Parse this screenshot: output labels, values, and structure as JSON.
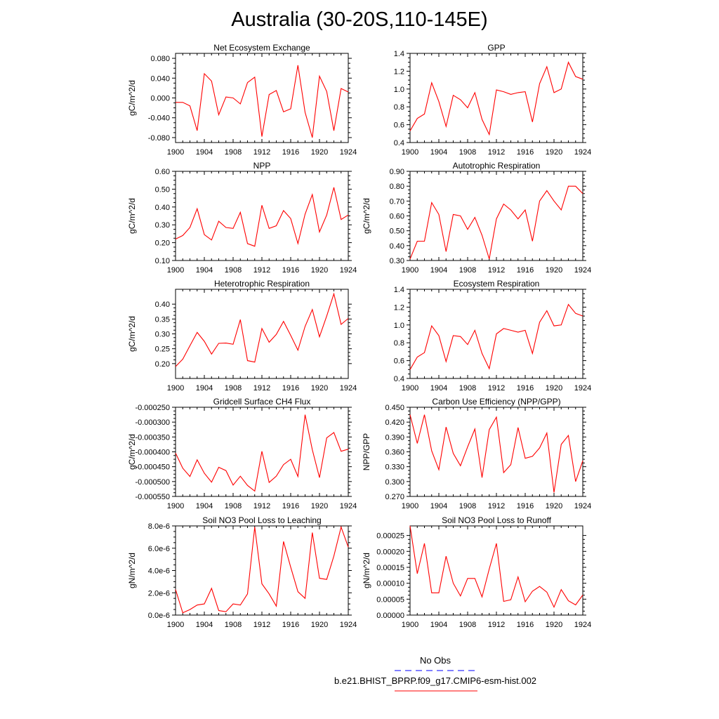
{
  "title": "Australia (30-20S,110-145E)",
  "colors": {
    "model": "#ff0000",
    "obs": "#0000ff",
    "axis": "#000000"
  },
  "legend": {
    "obs_label": "No Obs",
    "model_label": "b.e21.BHIST_BPRP.f09_g17.CMIP6-esm-hist.002"
  },
  "chart_data": [
    {
      "type": "line",
      "title": "Net Ecosystem Exchange",
      "ylabel": "gC/m^2/d",
      "xlim": [
        1900,
        1924
      ],
      "ylim": [
        -0.09,
        0.09
      ],
      "x_ticks": [
        "1900",
        "1904",
        "1908",
        "1912",
        "1916",
        "1920",
        "1924"
      ],
      "y_ticks": [
        -0.08,
        -0.04,
        0.0,
        0.04,
        0.08
      ],
      "y_tick_labels": [
        "-0.080",
        "-0.040",
        "0.000",
        "0.040",
        "0.080"
      ],
      "series": [
        {
          "x": [
            1900,
            1901,
            1902,
            1903,
            1904,
            1905,
            1906,
            1907,
            1908,
            1909,
            1910,
            1911,
            1912,
            1913,
            1914,
            1915,
            1916,
            1917,
            1918,
            1919,
            1920,
            1921,
            1922,
            1923,
            1924
          ],
          "y": [
            -0.009,
            -0.009,
            -0.016,
            -0.066,
            0.049,
            0.034,
            -0.034,
            0.002,
            0.0,
            -0.012,
            0.031,
            0.042,
            -0.078,
            0.007,
            0.015,
            -0.028,
            -0.022,
            0.066,
            -0.029,
            -0.08,
            0.044,
            0.013,
            -0.066,
            0.019,
            0.012
          ]
        }
      ]
    },
    {
      "type": "line",
      "title": "GPP",
      "ylabel": "",
      "xlim": [
        1900,
        1924
      ],
      "ylim": [
        0.4,
        1.4
      ],
      "x_ticks": [
        "1900",
        "1904",
        "1908",
        "1912",
        "1916",
        "1920",
        "1924"
      ],
      "y_ticks": [
        0.4,
        0.6,
        0.8,
        1.0,
        1.2,
        1.4
      ],
      "y_tick_labels": [
        "0.4",
        "0.6",
        "0.8",
        "1.0",
        "1.2",
        "1.4"
      ],
      "series": [
        {
          "x": [
            1900,
            1901,
            1902,
            1903,
            1904,
            1905,
            1906,
            1907,
            1908,
            1909,
            1910,
            1911,
            1912,
            1913,
            1914,
            1915,
            1916,
            1917,
            1918,
            1919,
            1920,
            1921,
            1922,
            1923,
            1924
          ],
          "y": [
            0.53,
            0.67,
            0.72,
            1.07,
            0.86,
            0.58,
            0.93,
            0.88,
            0.79,
            0.96,
            0.66,
            0.49,
            0.99,
            0.97,
            0.94,
            0.96,
            0.97,
            0.63,
            1.06,
            1.25,
            0.96,
            1.0,
            1.3,
            1.14,
            1.11
          ]
        }
      ]
    },
    {
      "type": "line",
      "title": "NPP",
      "ylabel": "gC/m^2/d",
      "xlim": [
        1900,
        1924
      ],
      "ylim": [
        0.1,
        0.6
      ],
      "x_ticks": [
        "1900",
        "1904",
        "1908",
        "1912",
        "1916",
        "1920",
        "1924"
      ],
      "y_ticks": [
        0.1,
        0.2,
        0.3,
        0.4,
        0.5,
        0.6
      ],
      "y_tick_labels": [
        "0.10",
        "0.20",
        "0.30",
        "0.40",
        "0.50",
        "0.60"
      ],
      "series": [
        {
          "x": [
            1900,
            1901,
            1902,
            1903,
            1904,
            1905,
            1906,
            1907,
            1908,
            1909,
            1910,
            1911,
            1912,
            1913,
            1914,
            1915,
            1916,
            1917,
            1918,
            1919,
            1920,
            1921,
            1922,
            1923,
            1924
          ],
          "y": [
            0.22,
            0.24,
            0.285,
            0.39,
            0.245,
            0.215,
            0.32,
            0.285,
            0.28,
            0.37,
            0.195,
            0.18,
            0.41,
            0.28,
            0.295,
            0.38,
            0.335,
            0.195,
            0.36,
            0.47,
            0.26,
            0.355,
            0.51,
            0.33,
            0.355
          ]
        }
      ]
    },
    {
      "type": "line",
      "title": "Autotrophic Respiration",
      "ylabel": "gC/m^2/d",
      "xlim": [
        1900,
        1924
      ],
      "ylim": [
        0.3,
        0.9
      ],
      "x_ticks": [
        "1900",
        "1904",
        "1908",
        "1912",
        "1916",
        "1920",
        "1924"
      ],
      "y_ticks": [
        0.3,
        0.4,
        0.5,
        0.6,
        0.7,
        0.8,
        0.9
      ],
      "y_tick_labels": [
        "0.30",
        "0.40",
        "0.50",
        "0.60",
        "0.70",
        "0.80",
        "0.90"
      ],
      "series": [
        {
          "x": [
            1900,
            1901,
            1902,
            1903,
            1904,
            1905,
            1906,
            1907,
            1908,
            1909,
            1910,
            1911,
            1912,
            1913,
            1914,
            1915,
            1916,
            1917,
            1918,
            1919,
            1920,
            1921,
            1922,
            1923,
            1924
          ],
          "y": [
            0.31,
            0.43,
            0.43,
            0.69,
            0.61,
            0.36,
            0.61,
            0.6,
            0.51,
            0.59,
            0.47,
            0.31,
            0.58,
            0.68,
            0.64,
            0.58,
            0.64,
            0.43,
            0.7,
            0.77,
            0.7,
            0.64,
            0.8,
            0.8,
            0.75
          ]
        }
      ]
    },
    {
      "type": "line",
      "title": "Heterotrophic Respiration",
      "ylabel": "gC/m^2/d",
      "xlim": [
        1900,
        1924
      ],
      "ylim": [
        0.15,
        0.45
      ],
      "x_ticks": [
        "1900",
        "1904",
        "1908",
        "1912",
        "1916",
        "1920",
        "1924"
      ],
      "y_ticks": [
        0.2,
        0.25,
        0.3,
        0.35,
        0.4
      ],
      "y_tick_labels": [
        "0.20",
        "0.25",
        "0.30",
        "0.35",
        "0.40"
      ],
      "series": [
        {
          "x": [
            1900,
            1901,
            1902,
            1903,
            1904,
            1905,
            1906,
            1907,
            1908,
            1909,
            1910,
            1911,
            1912,
            1913,
            1914,
            1915,
            1916,
            1917,
            1918,
            1919,
            1920,
            1921,
            1922,
            1923,
            1924
          ],
          "y": [
            0.19,
            0.215,
            0.26,
            0.305,
            0.275,
            0.232,
            0.268,
            0.269,
            0.265,
            0.348,
            0.21,
            0.205,
            0.318,
            0.272,
            0.298,
            0.342,
            0.295,
            0.245,
            0.325,
            0.382,
            0.29,
            0.36,
            0.435,
            0.332,
            0.352
          ]
        }
      ]
    },
    {
      "type": "line",
      "title": "Ecosystem Respiration",
      "ylabel": "",
      "xlim": [
        1900,
        1924
      ],
      "ylim": [
        0.4,
        1.4
      ],
      "x_ticks": [
        "1900",
        "1904",
        "1908",
        "1912",
        "1916",
        "1920",
        "1924"
      ],
      "y_ticks": [
        0.4,
        0.6,
        0.8,
        1.0,
        1.2,
        1.4
      ],
      "y_tick_labels": [
        "0.4",
        "0.6",
        "0.8",
        "1.0",
        "1.2",
        "1.4"
      ],
      "series": [
        {
          "x": [
            1900,
            1901,
            1902,
            1903,
            1904,
            1905,
            1906,
            1907,
            1908,
            1909,
            1910,
            1911,
            1912,
            1913,
            1914,
            1915,
            1916,
            1917,
            1918,
            1919,
            1920,
            1921,
            1922,
            1923,
            1924
          ],
          "y": [
            0.5,
            0.64,
            0.69,
            0.99,
            0.88,
            0.59,
            0.88,
            0.87,
            0.78,
            0.94,
            0.68,
            0.51,
            0.9,
            0.96,
            0.94,
            0.92,
            0.94,
            0.68,
            1.03,
            1.16,
            0.99,
            1.0,
            1.23,
            1.13,
            1.1
          ]
        }
      ]
    },
    {
      "type": "line",
      "title": "Gridcell Surface CH4 Flux",
      "ylabel": "gC/m^2/d",
      "xlim": [
        1900,
        1924
      ],
      "ylim": [
        -0.00055,
        -0.00025
      ],
      "x_ticks": [
        "1900",
        "1904",
        "1908",
        "1912",
        "1916",
        "1920",
        "1924"
      ],
      "y_ticks": [
        -0.00055,
        -0.0005,
        -0.00045,
        -0.0004,
        -0.00035,
        -0.0003,
        -0.00025
      ],
      "y_tick_labels": [
        "-0.000550",
        "-0.000500",
        "-0.000450",
        "-0.000400",
        "-0.000350",
        "-0.000300",
        "-0.000250"
      ],
      "series": [
        {
          "x": [
            1900,
            1901,
            1902,
            1903,
            1904,
            1905,
            1906,
            1907,
            1908,
            1909,
            1910,
            1911,
            1912,
            1913,
            1914,
            1915,
            1916,
            1917,
            1918,
            1919,
            1920,
            1921,
            1922,
            1923,
            1924
          ],
          "y": [
            -0.000404,
            -0.000455,
            -0.000483,
            -0.000427,
            -0.000472,
            -0.000502,
            -0.000452,
            -0.000463,
            -0.000512,
            -0.000482,
            -0.000513,
            -0.000532,
            -0.000398,
            -0.000503,
            -0.000482,
            -0.000443,
            -0.000425,
            -0.000483,
            -0.000275,
            -0.000393,
            -0.000487,
            -0.000353,
            -0.000335,
            -0.000398,
            -0.000391
          ]
        }
      ]
    },
    {
      "type": "line",
      "title": "Carbon Use Efficiency (NPP/GPP)",
      "ylabel": "NPP/GPP",
      "xlim": [
        1900,
        1924
      ],
      "ylim": [
        0.27,
        0.45
      ],
      "x_ticks": [
        "1900",
        "1904",
        "1908",
        "1912",
        "1916",
        "1920",
        "1924"
      ],
      "y_ticks": [
        0.27,
        0.3,
        0.33,
        0.36,
        0.39,
        0.42,
        0.45
      ],
      "y_tick_labels": [
        "0.270",
        "0.300",
        "0.330",
        "0.360",
        "0.390",
        "0.420",
        "0.450"
      ],
      "series": [
        {
          "x": [
            1900,
            1901,
            1902,
            1903,
            1904,
            1905,
            1906,
            1907,
            1908,
            1909,
            1910,
            1911,
            1912,
            1913,
            1914,
            1915,
            1916,
            1917,
            1918,
            1919,
            1920,
            1921,
            1922,
            1923,
            1924
          ],
          "y": [
            0.435,
            0.377,
            0.435,
            0.362,
            0.324,
            0.41,
            0.357,
            0.332,
            0.37,
            0.406,
            0.308,
            0.405,
            0.43,
            0.318,
            0.334,
            0.409,
            0.347,
            0.351,
            0.368,
            0.398,
            0.278,
            0.375,
            0.393,
            0.3,
            0.342
          ]
        }
      ]
    },
    {
      "type": "line",
      "title": "Soil NO3 Pool Loss to Leaching",
      "ylabel": "gN/m^2/d",
      "xlim": [
        1900,
        1924
      ],
      "ylim": [
        0,
        8e-06
      ],
      "x_ticks": [
        "1900",
        "1904",
        "1908",
        "1912",
        "1916",
        "1920",
        "1924"
      ],
      "y_ticks": [
        0,
        2e-06,
        4e-06,
        6e-06,
        8e-06
      ],
      "y_tick_labels": [
        "0.0e-6",
        "2.0e-6",
        "4.0e-6",
        "6.0e-6",
        "8.0e-6"
      ],
      "series": [
        {
          "x": [
            1900,
            1901,
            1902,
            1903,
            1904,
            1905,
            1906,
            1907,
            1908,
            1909,
            1910,
            1911,
            1912,
            1913,
            1914,
            1915,
            1916,
            1917,
            1918,
            1919,
            1920,
            1921,
            1922,
            1923,
            1924
          ],
          "y": [
            2.3e-06,
            2e-07,
            5e-07,
            9e-07,
            1e-06,
            2.4e-06,
            4e-07,
            3e-07,
            1e-06,
            9e-07,
            1.9e-06,
            7.9e-06,
            2.8e-06,
            1.9e-06,
            8e-07,
            6.6e-06,
            4.3e-06,
            2.1e-06,
            1.5e-06,
            7.4e-06,
            3.3e-06,
            3.2e-06,
            5.3e-06,
            7.9e-06,
            6.1e-06
          ]
        }
      ]
    },
    {
      "type": "line",
      "title": "Soil NO3 Pool Loss to Runoff",
      "ylabel": "gN/m^2/d",
      "xlim": [
        1900,
        1924
      ],
      "ylim": [
        0,
        0.00028
      ],
      "x_ticks": [
        "1900",
        "1904",
        "1908",
        "1912",
        "1916",
        "1920",
        "1924"
      ],
      "y_ticks": [
        0,
        5e-05,
        0.0001,
        0.00015,
        0.0002,
        0.00025
      ],
      "y_tick_labels": [
        "0.00000",
        "0.00005",
        "0.00010",
        "0.00015",
        "0.00020",
        "0.00025"
      ],
      "series": [
        {
          "x": [
            1900,
            1901,
            1902,
            1903,
            1904,
            1905,
            1906,
            1907,
            1908,
            1909,
            1910,
            1911,
            1912,
            1913,
            1914,
            1915,
            1916,
            1917,
            1918,
            1919,
            1920,
            1921,
            1922,
            1923,
            1924
          ],
          "y": [
            0.00028,
            0.00013,
            0.000225,
            7e-05,
            7e-05,
            0.000185,
            0.0001,
            6e-05,
            0.000115,
            0.000115,
            5.7e-05,
            0.000145,
            0.000225,
            4.3e-05,
            4.8e-05,
            0.00012,
            4.2e-05,
            7.5e-05,
            9e-05,
            7.2e-05,
            2.5e-05,
            8e-05,
            4.5e-05,
            3.2e-05,
            6.3e-05
          ]
        }
      ]
    }
  ]
}
